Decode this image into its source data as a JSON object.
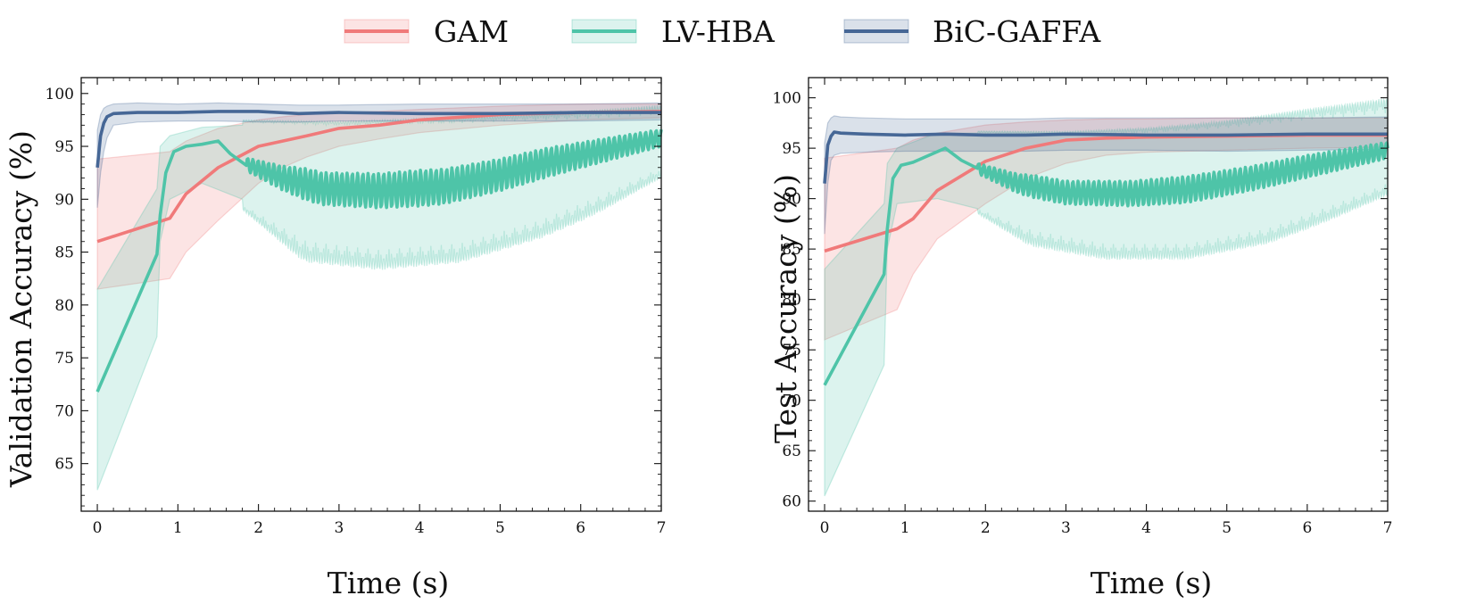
{
  "legend": [
    {
      "label": "GAM",
      "color": "#f07a7a"
    },
    {
      "label": "LV-HBA",
      "color": "#4ec4a8"
    },
    {
      "label": "BiC-GAFFA",
      "color": "#466796"
    }
  ],
  "chart_data": [
    {
      "type": "line",
      "xlabel": "Time (s)",
      "ylabel": "Validation Accuracy (%)",
      "xlim": [
        -0.2,
        7
      ],
      "ylim": [
        60.5,
        101.5
      ],
      "xticks": [
        "0",
        "1",
        "2",
        "3",
        "4",
        "5",
        "6",
        "7"
      ],
      "yticks": [
        "65",
        "70",
        "75",
        "80",
        "85",
        "90",
        "95",
        "100"
      ],
      "series": [
        {
          "name": "GAM",
          "x": [
            0,
            0.9,
            1.1,
            1.5,
            2.0,
            2.3,
            2.6,
            3.0,
            3.5,
            4.0,
            5.0,
            6.0,
            7.0
          ],
          "y": [
            86.0,
            88.2,
            90.5,
            93.0,
            95.0,
            95.5,
            96.0,
            96.7,
            97.0,
            97.5,
            98.0,
            98.2,
            98.3
          ],
          "lower": [
            81.5,
            82.5,
            85.0,
            88.0,
            91.5,
            93.0,
            94.0,
            95.0,
            95.7,
            96.3,
            97.0,
            97.5,
            97.7
          ],
          "upper": [
            93.8,
            94.5,
            95.5,
            96.7,
            97.5,
            97.8,
            98.0,
            98.2,
            98.3,
            98.5,
            98.8,
            99.0,
            99.0
          ]
        },
        {
          "name": "LV-HBA",
          "start": [
            [
              0,
              71.8
            ],
            [
              0.74,
              84.8
            ],
            [
              0.78,
              88.5
            ],
            [
              0.85,
              92.5
            ],
            [
              0.95,
              94.5
            ],
            [
              1.1,
              95.0
            ],
            [
              1.3,
              95.2
            ],
            [
              1.5,
              95.5
            ],
            [
              1.65,
              94.3
            ],
            [
              1.85,
              93.2
            ]
          ],
          "trend": [
            [
              1.85,
              93.3
            ],
            [
              2.3,
              92.0
            ],
            [
              2.8,
              91.0
            ],
            [
              3.5,
              90.8
            ],
            [
              4.3,
              91.2
            ],
            [
              5.0,
              92.3
            ],
            [
              5.6,
              93.5
            ],
            [
              6.2,
              94.5
            ],
            [
              7.0,
              95.8
            ]
          ],
          "amplitude": [
            [
              1.85,
              0.6
            ],
            [
              2.6,
              1.5
            ],
            [
              4.0,
              1.7
            ],
            [
              5.5,
              1.4
            ],
            [
              7.0,
              0.8
            ]
          ],
          "lower_start": [
            [
              0,
              62.5
            ],
            [
              0.74,
              77.0
            ],
            [
              0.78,
              86.0
            ],
            [
              0.9,
              90.0
            ],
            [
              1.3,
              91.5
            ],
            [
              1.8,
              90.0
            ]
          ],
          "lower_trend": [
            [
              1.8,
              89.5
            ],
            [
              2.6,
              86.0
            ],
            [
              3.5,
              85.2
            ],
            [
              4.5,
              85.8
            ],
            [
              5.5,
              88.0
            ],
            [
              6.3,
              90.5
            ],
            [
              7.0,
              93.0
            ]
          ],
          "upper_start": [
            [
              0,
              81.5
            ],
            [
              0.74,
              91.0
            ],
            [
              0.78,
              95.0
            ],
            [
              0.9,
              96.0
            ],
            [
              1.3,
              96.8
            ],
            [
              1.8,
              97.0
            ]
          ],
          "upper_trend": [
            [
              1.8,
              97.3
            ],
            [
              3.0,
              97.0
            ],
            [
              4.5,
              97.2
            ],
            [
              6.0,
              97.6
            ],
            [
              7.0,
              98.0
            ]
          ],
          "upper_amplitude": [
            [
              1.8,
              0.2
            ],
            [
              7.0,
              0.9
            ]
          ],
          "lower_amplitude": [
            [
              1.8,
              0.5
            ],
            [
              2.5,
              2.0
            ],
            [
              6.0,
              1.7
            ],
            [
              7.0,
              1.0
            ]
          ]
        },
        {
          "name": "BiC-GAFFA",
          "x": [
            0,
            0.04,
            0.08,
            0.12,
            0.2,
            0.5,
            1.0,
            1.5,
            2.0,
            2.5,
            3.0,
            4.0,
            5.0,
            6.0,
            7.0
          ],
          "y": [
            93.0,
            96.0,
            97.2,
            97.8,
            98.1,
            98.2,
            98.2,
            98.3,
            98.3,
            98.1,
            98.2,
            98.1,
            98.1,
            98.2,
            98.2
          ],
          "lower": [
            89.2,
            92.5,
            94.5,
            95.8,
            97.0,
            97.3,
            97.4,
            97.4,
            97.3,
            97.3,
            97.4,
            97.4,
            97.4,
            97.4,
            97.5
          ],
          "upper": [
            96.5,
            98.0,
            98.6,
            98.8,
            99.0,
            99.1,
            99.0,
            99.1,
            99.0,
            98.9,
            98.9,
            99.0,
            99.0,
            99.0,
            99.1
          ]
        }
      ]
    },
    {
      "type": "line",
      "xlabel": "Time (s)",
      "ylabel": "Test Accuracy (%)",
      "xlim": [
        -0.2,
        7
      ],
      "ylim": [
        59.0,
        102.0
      ],
      "xticks": [
        "0",
        "1",
        "2",
        "3",
        "4",
        "5",
        "6",
        "7"
      ],
      "yticks": [
        "60",
        "65",
        "70",
        "75",
        "80",
        "85",
        "90",
        "95",
        "100"
      ],
      "series": [
        {
          "name": "GAM",
          "x": [
            0,
            0.9,
            1.1,
            1.4,
            2.0,
            2.5,
            3.0,
            3.5,
            4.0,
            5.0,
            6.0,
            7.0
          ],
          "y": [
            84.8,
            87.0,
            88.0,
            90.8,
            93.7,
            95.0,
            95.8,
            96.0,
            96.1,
            96.2,
            96.3,
            96.3
          ],
          "lower": [
            76.0,
            79.0,
            82.5,
            86.0,
            89.5,
            92.0,
            93.5,
            94.3,
            94.6,
            94.8,
            95.0,
            95.1
          ],
          "upper": [
            94.0,
            95.0,
            95.8,
            96.5,
            97.3,
            97.6,
            97.8,
            97.9,
            97.9,
            98.0,
            98.0,
            98.0
          ]
        },
        {
          "name": "LV-HBA",
          "start": [
            [
              0,
              71.5
            ],
            [
              0.74,
              82.5
            ],
            [
              0.78,
              87.0
            ],
            [
              0.85,
              92.0
            ],
            [
              0.95,
              93.3
            ],
            [
              1.1,
              93.6
            ],
            [
              1.3,
              94.3
            ],
            [
              1.5,
              95.0
            ],
            [
              1.7,
              93.8
            ],
            [
              1.9,
              93.0
            ]
          ],
          "trend": [
            [
              1.9,
              93.0
            ],
            [
              2.4,
              91.5
            ],
            [
              3.0,
              90.6
            ],
            [
              3.8,
              90.5
            ],
            [
              4.5,
              90.9
            ],
            [
              5.3,
              92.0
            ],
            [
              6.0,
              93.2
            ],
            [
              7.0,
              94.8
            ]
          ],
          "amplitude": [
            [
              1.9,
              0.5
            ],
            [
              2.6,
              1.1
            ],
            [
              4.5,
              1.3
            ],
            [
              6.0,
              1.1
            ],
            [
              7.0,
              0.8
            ]
          ],
          "lower_start": [
            [
              0,
              60.5
            ],
            [
              0.74,
              73.5
            ],
            [
              0.78,
              85.0
            ],
            [
              0.9,
              89.5
            ],
            [
              1.4,
              90.0
            ],
            [
              1.9,
              89.0
            ]
          ],
          "lower_trend": [
            [
              1.9,
              89.0
            ],
            [
              2.6,
              86.8
            ],
            [
              3.5,
              85.5
            ],
            [
              4.5,
              85.5
            ],
            [
              5.5,
              87.0
            ],
            [
              6.3,
              89.3
            ],
            [
              7.0,
              91.5
            ]
          ],
          "upper_start": [
            [
              0,
              83.0
            ],
            [
              0.74,
              89.5
            ],
            [
              0.78,
              93.5
            ],
            [
              0.9,
              95.0
            ],
            [
              1.4,
              96.5
            ],
            [
              1.9,
              96.5
            ]
          ],
          "upper_trend": [
            [
              1.9,
              96.5
            ],
            [
              3.0,
              96.3
            ],
            [
              4.0,
              96.5
            ],
            [
              5.0,
              97.0
            ],
            [
              6.0,
              97.8
            ],
            [
              7.0,
              98.5
            ]
          ],
          "upper_amplitude": [
            [
              1.9,
              0.2
            ],
            [
              4.5,
              0.6
            ],
            [
              6.5,
              1.3
            ],
            [
              7.0,
              1.5
            ]
          ],
          "lower_amplitude": [
            [
              1.9,
              0.5
            ],
            [
              2.5,
              1.6
            ],
            [
              6.0,
              1.5
            ],
            [
              7.0,
              1.2
            ]
          ]
        },
        {
          "name": "BiC-GAFFA",
          "x": [
            0,
            0.04,
            0.08,
            0.12,
            0.2,
            0.5,
            1.0,
            1.5,
            2.0,
            2.5,
            3.0,
            4.0,
            5.0,
            6.0,
            7.0
          ],
          "y": [
            91.5,
            95.3,
            96.2,
            96.6,
            96.5,
            96.4,
            96.3,
            96.4,
            96.3,
            96.3,
            96.4,
            96.3,
            96.3,
            96.4,
            96.4
          ],
          "lower": [
            86.5,
            91.5,
            93.8,
            94.3,
            94.5,
            94.6,
            94.7,
            94.7,
            94.7,
            94.7,
            94.8,
            94.8,
            94.7,
            94.8,
            94.9
          ],
          "upper": [
            95.5,
            97.5,
            98.0,
            98.2,
            98.1,
            98.0,
            97.9,
            97.9,
            97.9,
            97.9,
            98.0,
            98.0,
            98.0,
            98.0,
            98.1
          ]
        }
      ]
    }
  ]
}
